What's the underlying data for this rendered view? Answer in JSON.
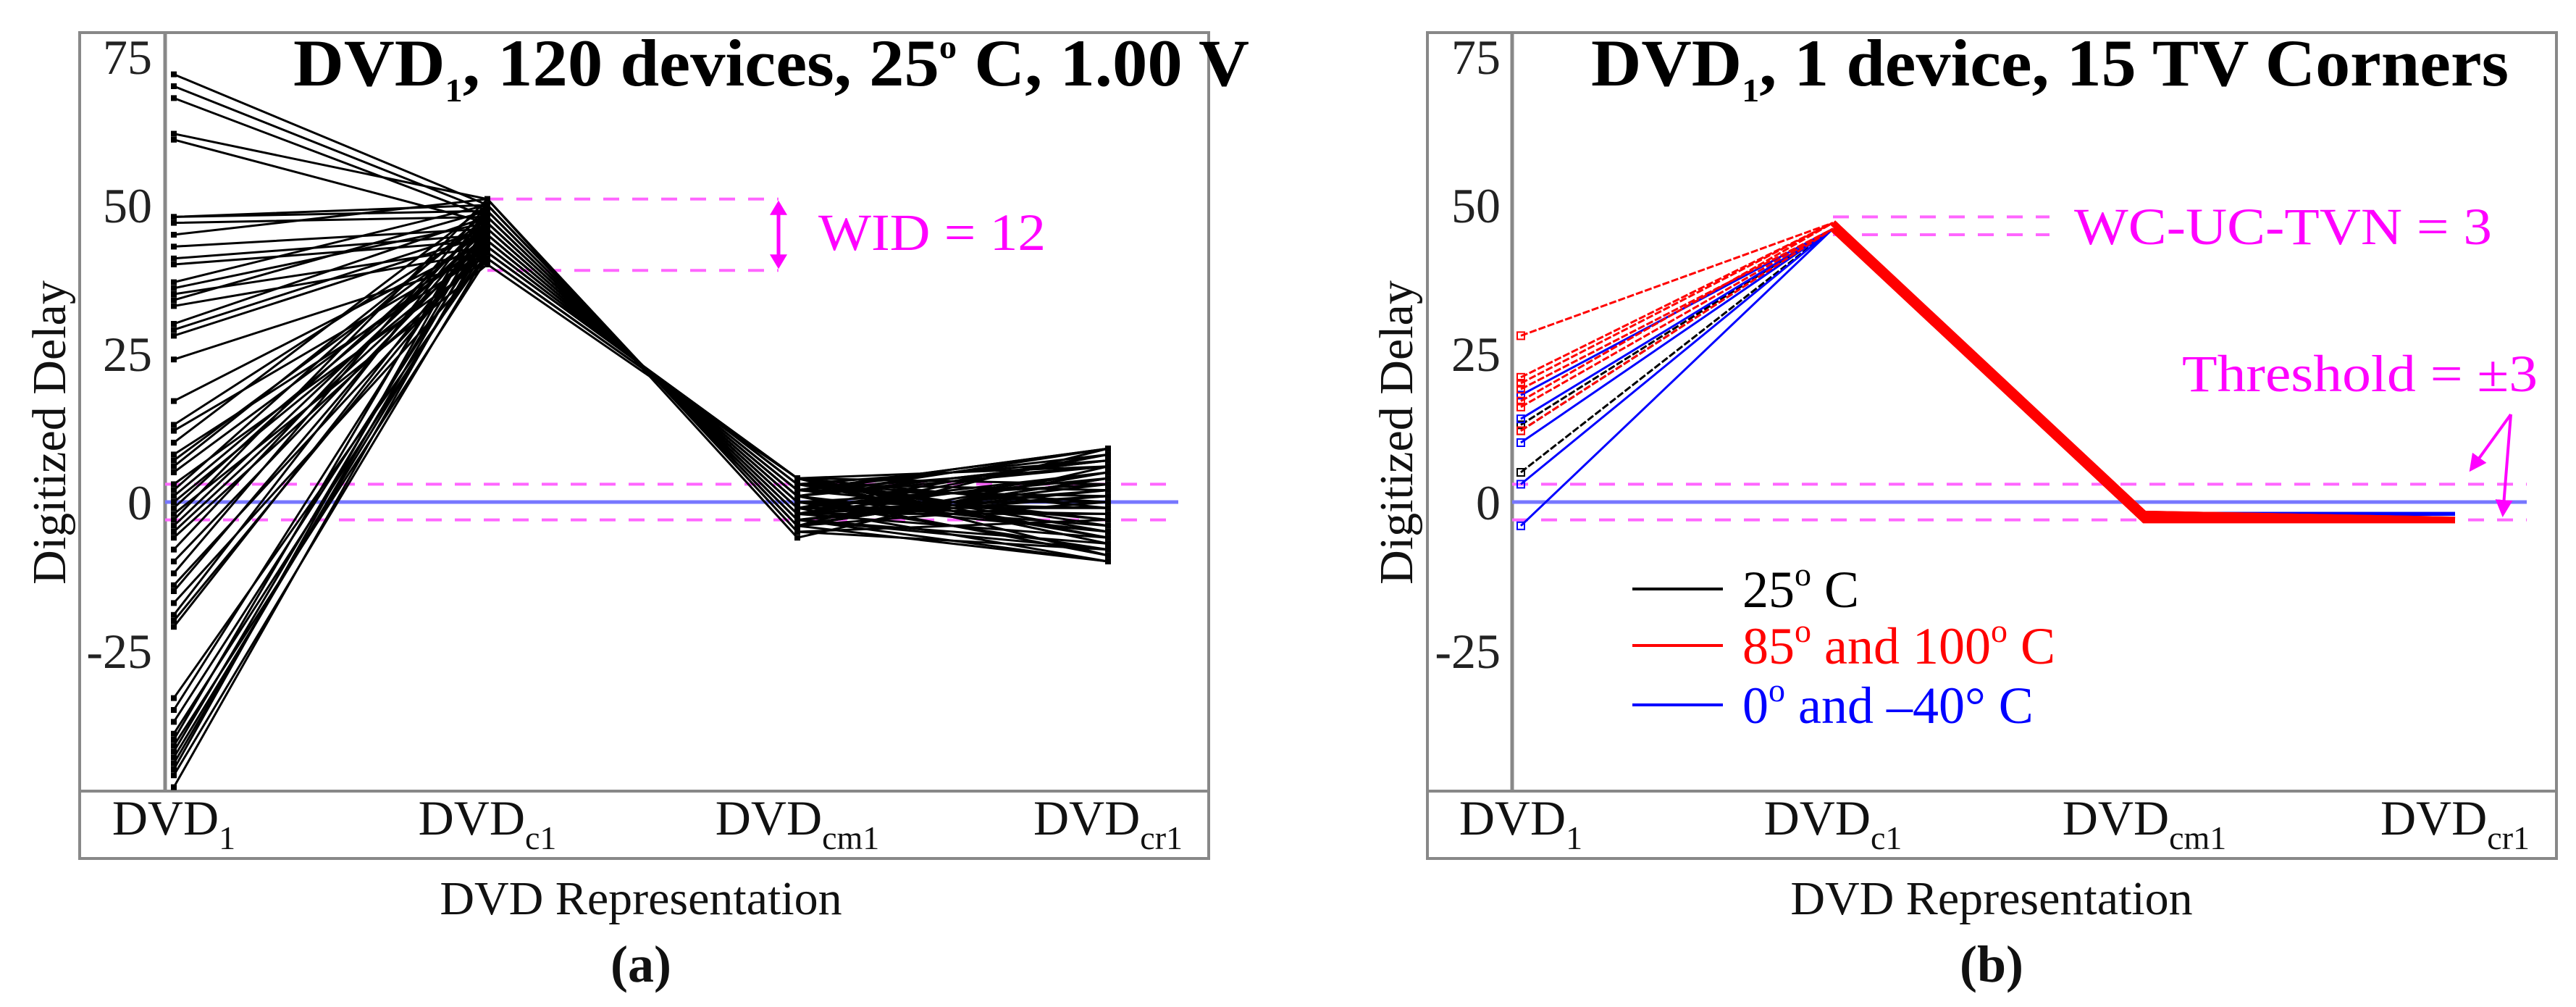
{
  "colors": {
    "line_25C": "#000000",
    "line_hot": "#ff0000",
    "line_cold": "#0000ff",
    "annotation": "#ff00ff",
    "zero_line": "#7777ff",
    "frame": "#888888"
  },
  "chart_data": [
    {
      "type": "line",
      "panel_label": "(a)",
      "title": {
        "main": "DVD",
        "sub": "1",
        "rest": ", 120 devices, 25",
        "sup": "o",
        "tail": " C, 1.00 V"
      },
      "xlabel": "DVD Representation",
      "ylabel": "Digitized Delay",
      "ylim": [
        -50,
        80
      ],
      "yticks": [
        75,
        50,
        25,
        0,
        -25
      ],
      "categories": [
        {
          "main": "DVD",
          "sub": "1"
        },
        {
          "main": "DVD",
          "sub": "c1"
        },
        {
          "main": "DVD",
          "sub": "cm1"
        },
        {
          "main": "DVD",
          "sub": "cr1"
        }
      ],
      "zero_line": 0,
      "threshold_lines": [
        3,
        -3
      ],
      "annotation": {
        "text": "WID = 12",
        "range": [
          39,
          51
        ]
      },
      "series_color": "#000000",
      "series": {
        "DVD1": [
          72,
          70,
          68,
          62,
          61,
          48,
          48,
          47,
          45,
          43,
          41,
          40,
          37,
          36,
          35,
          34,
          33,
          30,
          29,
          28,
          24,
          17,
          13,
          12,
          10,
          8,
          7,
          6,
          5,
          3,
          2,
          1,
          0,
          -1,
          -2,
          -3,
          -4,
          -5,
          -6,
          -8,
          -10,
          -12,
          -14,
          -15,
          -17,
          -19,
          -20,
          -21,
          -33,
          -35,
          -37,
          -39,
          -40,
          -41,
          -42,
          -43,
          -44,
          -45,
          -46,
          -48
        ],
        "DVDc1": [
          50,
          49,
          48,
          51,
          47,
          50,
          49,
          48,
          51,
          46,
          45,
          44,
          50,
          47,
          43,
          49,
          42,
          48,
          46,
          45,
          41,
          44,
          47,
          43,
          50,
          42,
          46,
          48,
          44,
          41,
          49,
          45,
          43,
          47,
          40,
          51,
          46,
          44,
          42,
          48,
          45,
          50,
          43,
          47,
          41,
          49,
          44,
          46,
          42,
          48,
          45,
          43,
          50,
          41,
          47,
          44,
          46,
          49,
          42,
          45
        ],
        "DVDcm1": [
          -4,
          -3,
          -2,
          -5,
          -1,
          -4,
          -3,
          -2,
          -6,
          0,
          1,
          2,
          -4,
          -1,
          3,
          -3,
          4,
          -2,
          0,
          1,
          4,
          2,
          -1,
          3,
          -4,
          4,
          0,
          -2,
          2,
          4,
          -3,
          1,
          3,
          -1,
          4,
          -5,
          0,
          2,
          4,
          -2,
          1,
          -4,
          3,
          -1,
          4,
          -3,
          2,
          0,
          4,
          -2,
          1,
          3,
          -4,
          4,
          -1,
          2,
          0,
          -3,
          4,
          1
        ],
        "DVDcr1": [
          9,
          -10,
          5,
          -3,
          8,
          0,
          -7,
          2,
          6,
          -5,
          -9,
          1,
          4,
          -2,
          7,
          -8,
          3,
          -6,
          -1,
          9,
          -4,
          6,
          -10,
          2,
          5,
          -7,
          0,
          8,
          -3,
          -9,
          1,
          7,
          -6,
          4,
          -1,
          -8,
          3,
          9,
          -5,
          -2,
          6,
          -10,
          0,
          5,
          -7,
          2,
          8,
          -4,
          -9,
          1,
          7,
          -3,
          4,
          -6,
          -1,
          9,
          -8,
          3,
          6,
          -5
        ]
      }
    },
    {
      "type": "line",
      "panel_label": "(b)",
      "title": {
        "main": "DVD",
        "sub": "1",
        "rest": ", 1 device, 15 TV Corners"
      },
      "xlabel": "DVD Representation",
      "ylabel": "Digitized Delay",
      "ylim": [
        -50,
        80
      ],
      "yticks": [
        75,
        50,
        25,
        0,
        -25
      ],
      "categories": [
        {
          "main": "DVD",
          "sub": "1"
        },
        {
          "main": "DVD",
          "sub": "c1"
        },
        {
          "main": "DVD",
          "sub": "cm1"
        },
        {
          "main": "DVD",
          "sub": "cr1"
        }
      ],
      "zero_line": 0,
      "threshold_lines": [
        3,
        -3
      ],
      "annotation": {
        "text": "WC-UC-TVN = 3",
        "range": [
          45,
          48
        ]
      },
      "threshold_label": "Threshold = ±3",
      "legend": [
        {
          "group": "25C",
          "label_main": "25",
          "sup": "o",
          "label_tail": " C",
          "color": "#000000"
        },
        {
          "group": "hot",
          "label_main": "85",
          "sup": "o",
          "label_mid": " and 100",
          "sup2": "o",
          "label_tail": " C",
          "color": "#ff0000"
        },
        {
          "group": "cold",
          "label_main": "0",
          "sup": "o",
          "label_tail": " and –40° C",
          "color": "#0000ff"
        }
      ],
      "series": [
        {
          "group": "25C",
          "values": [
            13,
            46,
            -2,
            -2
          ]
        },
        {
          "group": "25C",
          "values": [
            12,
            46,
            -2,
            -2
          ]
        },
        {
          "group": "25C",
          "values": [
            5,
            46,
            -2,
            -2
          ]
        },
        {
          "group": "cold",
          "values": [
            18,
            46,
            -2,
            -2
          ]
        },
        {
          "group": "cold",
          "values": [
            14,
            46,
            -2,
            -2
          ]
        },
        {
          "group": "cold",
          "values": [
            10,
            46,
            -2,
            -2
          ]
        },
        {
          "group": "cold",
          "values": [
            3,
            46,
            -2,
            -2
          ]
        },
        {
          "group": "cold",
          "values": [
            -4,
            46,
            -2,
            -2
          ]
        },
        {
          "group": "hot",
          "values": [
            28,
            47,
            -3,
            -3
          ]
        },
        {
          "group": "hot",
          "values": [
            21,
            47,
            -3,
            -3
          ]
        },
        {
          "group": "hot",
          "values": [
            20,
            47,
            -2,
            -3
          ]
        },
        {
          "group": "hot",
          "values": [
            19,
            46,
            -3,
            -3
          ]
        },
        {
          "group": "hot",
          "values": [
            17,
            47,
            -3,
            -3
          ]
        },
        {
          "group": "hot",
          "values": [
            16,
            46,
            -2,
            -3
          ]
        },
        {
          "group": "hot",
          "values": [
            12,
            46,
            -3,
            -3
          ]
        }
      ]
    }
  ]
}
